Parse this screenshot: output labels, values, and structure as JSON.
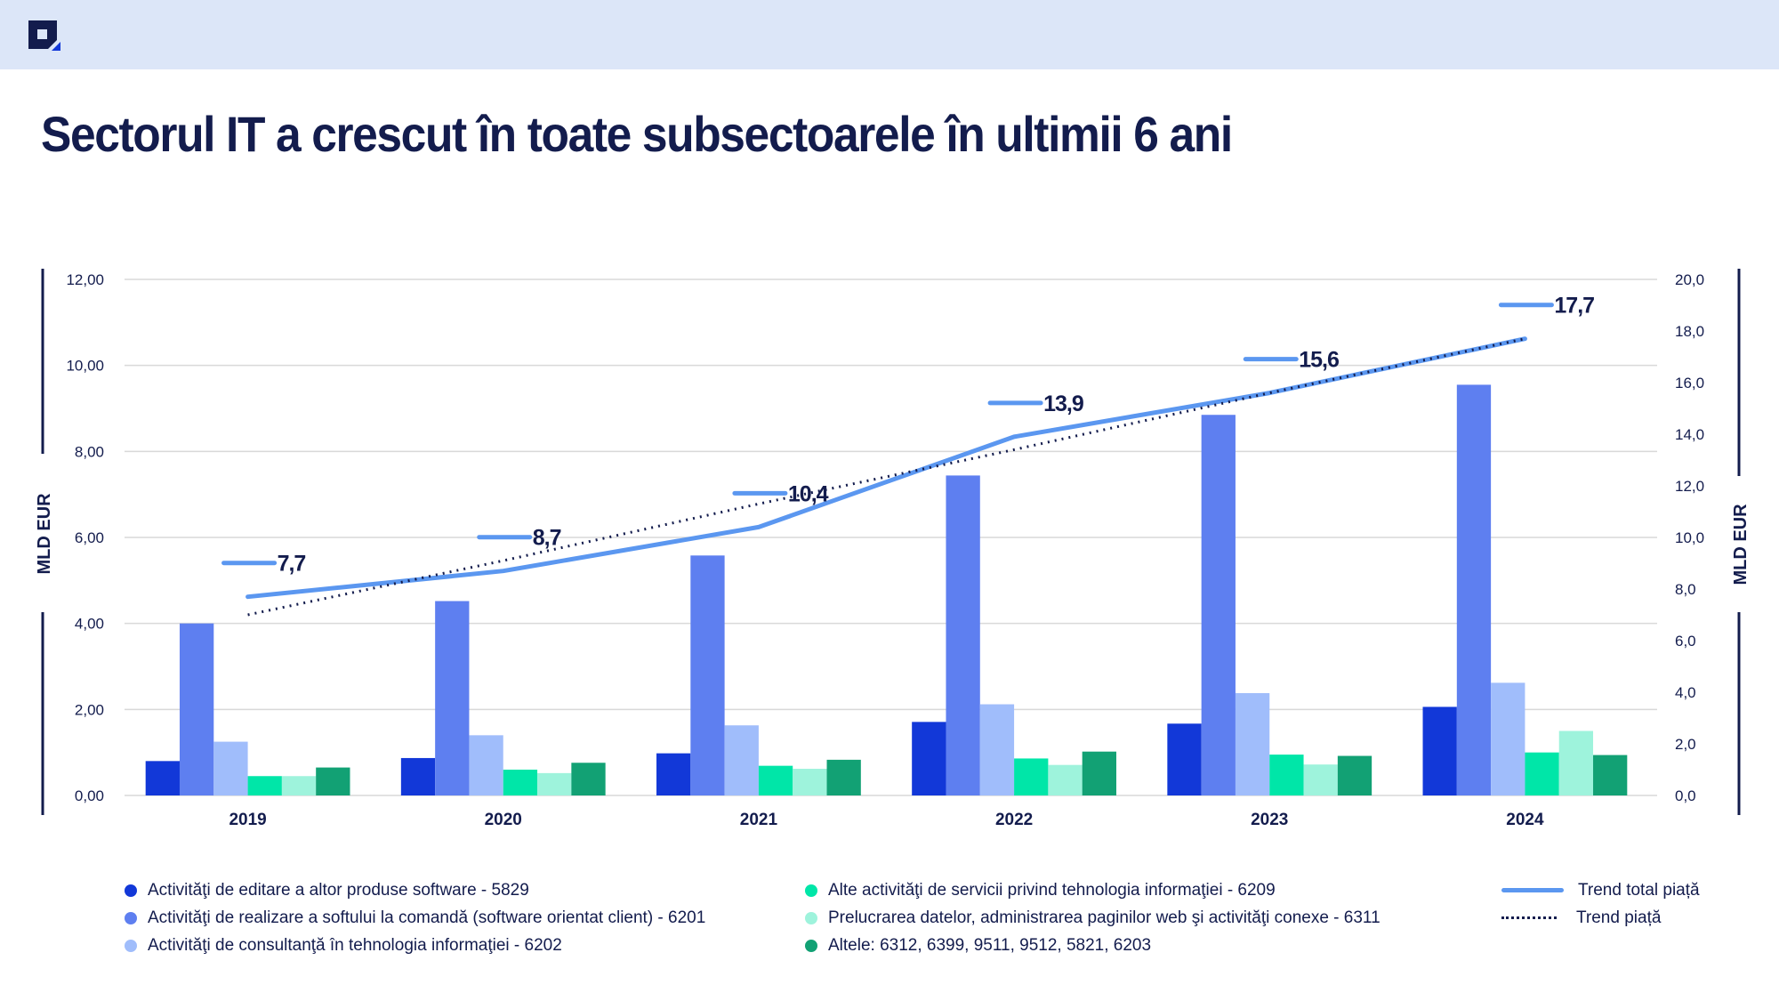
{
  "header": {
    "logo_icon": "square-logo-icon"
  },
  "title": "Sectorul IT a crescut în toate subsectoarele în ultimii 6 ani",
  "chart_data": {
    "type": "bar",
    "title": "Sectorul IT a crescut în toate subsectoarele în ultimii 6 ani",
    "xlabel": "",
    "ylabel": "MLD EUR",
    "y2label": "MLD EUR",
    "ylim": [
      0,
      12
    ],
    "y2lim": [
      0,
      20
    ],
    "yticks": [
      "0,00",
      "2,00",
      "4,00",
      "6,00",
      "8,00",
      "10,00",
      "12,00"
    ],
    "y2ticks": [
      "0,0",
      "2,0",
      "4,0",
      "6,0",
      "8,0",
      "10,0",
      "12,0",
      "14,0",
      "16,0",
      "18,0",
      "20,0"
    ],
    "grid": true,
    "legend_position": "bottom",
    "categories": [
      "2019",
      "2020",
      "2021",
      "2022",
      "2023",
      "2024"
    ],
    "series": [
      {
        "name": "Activităţi de editare a altor produse software - 5829",
        "color": "#1238d8",
        "axis": "left",
        "values": [
          0.8,
          0.87,
          0.98,
          1.71,
          1.67,
          2.06
        ]
      },
      {
        "name": "Activităţi de realizare a softului la comandă (software orientat client) - 6201",
        "color": "#5e7ff0",
        "axis": "left",
        "values": [
          4.0,
          4.52,
          5.58,
          7.44,
          8.85,
          9.55
        ]
      },
      {
        "name": "Activităţi de consultanţă în tehnologia informaţiei - 6202",
        "color": "#a0bdfb",
        "axis": "left",
        "values": [
          1.25,
          1.4,
          1.63,
          2.12,
          2.38,
          2.62
        ]
      },
      {
        "name": "Alte activităţi de servicii privind tehnologia informaţiei - 6209",
        "color": "#00e6a8",
        "axis": "left",
        "values": [
          0.45,
          0.6,
          0.69,
          0.86,
          0.95,
          1.0
        ]
      },
      {
        "name": "Prelucrarea datelor, administrarea paginilor web şi activităţi conexe - 6311",
        "color": "#9ef3dc",
        "axis": "left",
        "values": [
          0.45,
          0.52,
          0.62,
          0.71,
          0.72,
          1.5
        ]
      },
      {
        "name": "Altele: 6312, 6399, 9511, 9512, 5821, 6203",
        "color": "#12a174",
        "axis": "left",
        "values": [
          0.65,
          0.76,
          0.83,
          1.02,
          0.92,
          0.94
        ]
      }
    ],
    "lines": [
      {
        "name": "Trend total piață",
        "style": "solid",
        "color": "#5b97f0",
        "axis": "right",
        "values": [
          7.7,
          8.7,
          10.4,
          13.9,
          15.6,
          17.7
        ],
        "labels": [
          "7,7",
          "8,7",
          "10,4",
          "13,9",
          "15,6",
          "17,7"
        ]
      },
      {
        "name": "Trend piață",
        "style": "dotted",
        "color": "#131c4d",
        "axis": "right",
        "values": [
          7.0,
          9.1,
          11.3,
          13.4,
          15.6,
          17.7
        ]
      }
    ]
  },
  "legend": {
    "col1": [
      {
        "label": "Activităţi de editare a altor produse software - 5829",
        "color": "#1238d8"
      },
      {
        "label": "Activităţi de realizare a softului la comandă (software orientat client) - 6201",
        "color": "#5e7ff0"
      },
      {
        "label": "Activităţi de consultanţă în tehnologia informaţiei - 6202",
        "color": "#a0bdfb"
      }
    ],
    "col2": [
      {
        "label": "Alte activităţi de servicii privind tehnologia informaţiei - 6209",
        "color": "#00e6a8"
      },
      {
        "label": "Prelucrarea datelor, administrarea paginilor web şi activităţi conexe - 6311",
        "color": "#9ef3dc"
      },
      {
        "label": "Altele: 6312, 6399, 9511, 9512, 5821, 6203",
        "color": "#12a174"
      }
    ],
    "col3": [
      {
        "label": "Trend total piață"
      },
      {
        "label": "Trend piață"
      }
    ]
  }
}
